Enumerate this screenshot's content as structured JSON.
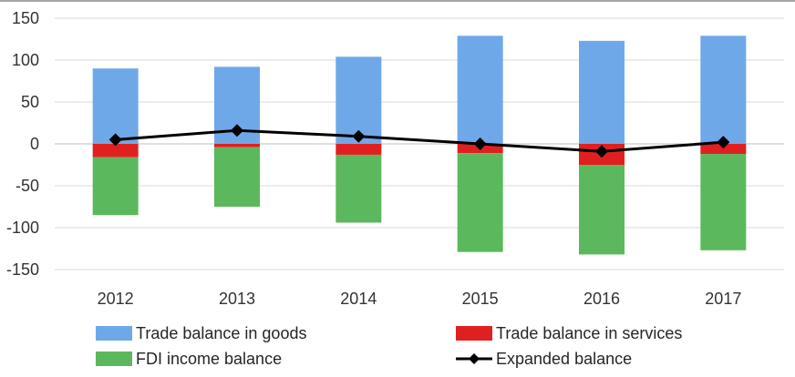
{
  "chart_data": {
    "type": "bar",
    "stacked": true,
    "categories": [
      "2012",
      "2013",
      "2014",
      "2015",
      "2016",
      "2017"
    ],
    "ylim": [
      -150,
      150
    ],
    "yticks": [
      150,
      100,
      50,
      0,
      -50,
      -100,
      -150
    ],
    "grid": true,
    "legend_position": "bottom",
    "series": [
      {
        "name": "Trade balance in goods",
        "type": "bar",
        "color": "#6fa8e8",
        "values": [
          90,
          92,
          104,
          129,
          123,
          129
        ]
      },
      {
        "name": "Trade balance in services",
        "type": "bar",
        "color": "#e02020",
        "values": [
          -16,
          -4,
          -13,
          -11,
          -25,
          -12
        ]
      },
      {
        "name": "FDI income balance",
        "type": "bar",
        "color": "#5cb85c",
        "values": [
          -69,
          -71,
          -81,
          -118,
          -107,
          -115
        ]
      },
      {
        "name": "Expanded balance",
        "type": "line",
        "color": "#000000",
        "values": [
          5,
          16,
          9,
          0,
          -9,
          2
        ]
      }
    ]
  }
}
